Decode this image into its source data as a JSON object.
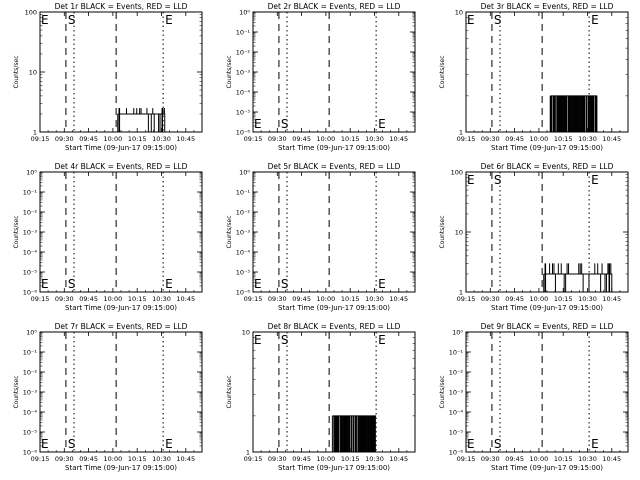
{
  "figure": {
    "background": "#ffffff",
    "foreground": "#000000",
    "lld_color": "#ff0000",
    "xlabel": "Start Time (09-Jun-17 09:15:00)",
    "ylabel": "Counts/sec",
    "xticks": [
      "09:15",
      "09:30",
      "09:45",
      "10:00",
      "10:15",
      "10:30",
      "10:45"
    ],
    "marker_labels": {
      "start": "S",
      "end": "E"
    },
    "series_note": "BLACK = Events, RED = LLD"
  },
  "chart_data": [
    {
      "type": "line",
      "title": "Det 1r BLACK = Events, RED = LLD",
      "ylabel": "Counts/sec",
      "xlabel": "Start Time (09-Jun-17 09:15:00)",
      "yscale": "log",
      "yticks": [
        "1",
        "10",
        "100"
      ],
      "ylim_decades": [
        0,
        2
      ],
      "x_range_min": [
        0,
        100
      ],
      "dashed_lines_min": [
        16,
        47
      ],
      "dotted_lines_min": [
        21,
        76
      ],
      "labels": [
        {
          "text": "E",
          "pos": "top"
        },
        {
          "text": "S",
          "pos": "top"
        },
        {
          "text": "E",
          "pos": "top"
        }
      ],
      "signal": {
        "start_min": 48,
        "end_min": 77,
        "level": 2,
        "low": 1,
        "high": 2.5,
        "style": "bar-noise"
      }
    },
    {
      "type": "line",
      "title": "Det 2r BLACK = Events, RED = LLD",
      "ylabel": "Counts/sec",
      "xlabel": "Start Time (09-Jun-17 09:15:00)",
      "yscale": "log",
      "yticks": [
        "10⁰",
        "10⁻¹",
        "10⁻²",
        "10⁻³",
        "10⁻⁴",
        "10⁻⁵",
        "10⁻⁶"
      ],
      "ylim_decades": [
        -6,
        0
      ],
      "x_range_min": [
        0,
        100
      ],
      "dashed_lines_min": [
        16,
        47
      ],
      "dotted_lines_min": [
        21,
        76
      ],
      "labels": [
        {
          "text": "E",
          "pos": "bottom"
        },
        {
          "text": "S",
          "pos": "bottom"
        },
        {
          "text": "E",
          "pos": "bottom"
        }
      ],
      "signal": null
    },
    {
      "type": "line",
      "title": "Det 3r BLACK = Events, RED = LLD",
      "ylabel": "Counts/sec",
      "xlabel": "Start Time (09-Jun-17 09:15:00)",
      "yscale": "log",
      "yticks": [
        "1",
        "10"
      ],
      "ylim_decades": [
        0,
        1
      ],
      "x_range_min": [
        0,
        100
      ],
      "dashed_lines_min": [
        16,
        47
      ],
      "dotted_lines_min": [
        21,
        76
      ],
      "labels": [
        {
          "text": "E",
          "pos": "top"
        },
        {
          "text": "S",
          "pos": "top"
        },
        {
          "text": "E",
          "pos": "top"
        }
      ],
      "signal": {
        "start_min": 52,
        "end_min": 81,
        "level": 2,
        "low": 1,
        "high": 2,
        "style": "dense-spikes"
      }
    },
    {
      "type": "line",
      "title": "Det 4r BLACK = Events, RED = LLD",
      "ylabel": "Counts/sec",
      "xlabel": "Start Time (09-Jun-17 09:15:00)",
      "yscale": "log",
      "yticks": [
        "10⁰",
        "10⁻¹",
        "10⁻²",
        "10⁻³",
        "10⁻⁴",
        "10⁻⁵",
        "10⁻⁶"
      ],
      "ylim_decades": [
        -6,
        0
      ],
      "x_range_min": [
        0,
        100
      ],
      "dashed_lines_min": [
        16,
        47
      ],
      "dotted_lines_min": [
        21,
        76
      ],
      "labels": [
        {
          "text": "E",
          "pos": "bottom"
        },
        {
          "text": "S",
          "pos": "bottom"
        },
        {
          "text": "E",
          "pos": "bottom"
        }
      ],
      "signal": null
    },
    {
      "type": "line",
      "title": "Det 5r BLACK = Events, RED = LLD",
      "ylabel": "Counts/sec",
      "xlabel": "Start Time (09-Jun-17 09:15:00)",
      "yscale": "log",
      "yticks": [
        "10⁰",
        "10⁻¹",
        "10⁻²",
        "10⁻³",
        "10⁻⁴",
        "10⁻⁵",
        "10⁻⁶"
      ],
      "ylim_decades": [
        -6,
        0
      ],
      "x_range_min": [
        0,
        100
      ],
      "dashed_lines_min": [
        16,
        47
      ],
      "dotted_lines_min": [
        21,
        76
      ],
      "labels": [
        {
          "text": "E",
          "pos": "bottom"
        },
        {
          "text": "S",
          "pos": "bottom"
        },
        {
          "text": "E",
          "pos": "bottom"
        }
      ],
      "signal": null
    },
    {
      "type": "line",
      "title": "Det 6r BLACK = Events, RED = LLD",
      "ylabel": "Counts/sec",
      "xlabel": "Start Time (09-Jun-17 09:15:00)",
      "yscale": "log",
      "yticks": [
        "1",
        "10",
        "100"
      ],
      "ylim_decades": [
        0,
        2
      ],
      "x_range_min": [
        0,
        100
      ],
      "dashed_lines_min": [
        16,
        47
      ],
      "dotted_lines_min": [
        21,
        76
      ],
      "labels": [
        {
          "text": "E",
          "pos": "top"
        },
        {
          "text": "S",
          "pos": "top"
        },
        {
          "text": "E",
          "pos": "top"
        }
      ],
      "signal": {
        "start_min": 48,
        "end_min": 90,
        "level": 2,
        "low": 1,
        "high": 3,
        "style": "bar-noise"
      }
    },
    {
      "type": "line",
      "title": "Det 7r BLACK = Events, RED = LLD",
      "ylabel": "Counts/sec",
      "xlabel": "Start Time (09-Jun-17 09:15:00)",
      "yscale": "log",
      "yticks": [
        "10⁰",
        "10⁻¹",
        "10⁻²",
        "10⁻³",
        "10⁻⁴",
        "10⁻⁵",
        "10⁻⁶"
      ],
      "ylim_decades": [
        -6,
        0
      ],
      "x_range_min": [
        0,
        100
      ],
      "dashed_lines_min": [
        16,
        47
      ],
      "dotted_lines_min": [
        21,
        76
      ],
      "labels": [
        {
          "text": "E",
          "pos": "bottom"
        },
        {
          "text": "S",
          "pos": "bottom"
        },
        {
          "text": "E",
          "pos": "bottom"
        }
      ],
      "signal": null
    },
    {
      "type": "line",
      "title": "Det 8r BLACK = Events, RED = LLD",
      "ylabel": "Counts/sec",
      "xlabel": "Start Time (09-Jun-17 09:15:00)",
      "yscale": "log",
      "yticks": [
        "1",
        "10"
      ],
      "ylim_decades": [
        0,
        1
      ],
      "x_range_min": [
        0,
        100
      ],
      "dashed_lines_min": [
        16,
        47
      ],
      "dotted_lines_min": [
        21,
        76
      ],
      "labels": [
        {
          "text": "E",
          "pos": "top"
        },
        {
          "text": "S",
          "pos": "top"
        },
        {
          "text": "E",
          "pos": "top"
        }
      ],
      "signal": {
        "start_min": 49,
        "end_min": 76,
        "level": 2,
        "low": 1,
        "high": 2,
        "style": "dense-spikes"
      }
    },
    {
      "type": "line",
      "title": "Det 9r BLACK = Events, RED = LLD",
      "ylabel": "Counts/sec",
      "xlabel": "Start Time (09-Jun-17 09:15:00)",
      "yscale": "log",
      "yticks": [
        "10⁰",
        "10⁻¹",
        "10⁻²",
        "10⁻³",
        "10⁻⁴",
        "10⁻⁵",
        "10⁻⁶"
      ],
      "ylim_decades": [
        -6,
        0
      ],
      "x_range_min": [
        0,
        100
      ],
      "dashed_lines_min": [
        16,
        47
      ],
      "dotted_lines_min": [
        21,
        76
      ],
      "labels": [
        {
          "text": "E",
          "pos": "bottom"
        },
        {
          "text": "S",
          "pos": "bottom"
        },
        {
          "text": "E",
          "pos": "bottom"
        }
      ],
      "signal": null
    }
  ]
}
